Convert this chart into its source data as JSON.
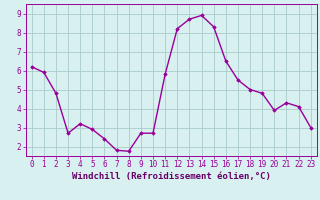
{
  "x": [
    0,
    1,
    2,
    3,
    4,
    5,
    6,
    7,
    8,
    9,
    10,
    11,
    12,
    13,
    14,
    15,
    16,
    17,
    18,
    19,
    20,
    21,
    22,
    23
  ],
  "y": [
    6.2,
    5.9,
    4.8,
    2.7,
    3.2,
    2.9,
    2.4,
    1.8,
    1.75,
    2.7,
    2.7,
    5.8,
    8.2,
    8.7,
    8.9,
    8.3,
    6.5,
    5.5,
    5.0,
    4.8,
    3.9,
    4.3,
    4.1,
    3.0
  ],
  "line_color": "#990099",
  "marker": "D",
  "marker_size": 1.8,
  "bg_color": "#d8f0f0",
  "grid_color": "#aacccc",
  "xlabel": "Windchill (Refroidissement éolien,°C)",
  "xlabel_color": "#660066",
  "ylim": [
    1.5,
    9.5
  ],
  "xlim": [
    -0.5,
    23.5
  ],
  "yticks": [
    2,
    3,
    4,
    5,
    6,
    7,
    8,
    9
  ],
  "xticks": [
    0,
    1,
    2,
    3,
    4,
    5,
    6,
    7,
    8,
    9,
    10,
    11,
    12,
    13,
    14,
    15,
    16,
    17,
    18,
    19,
    20,
    21,
    22,
    23
  ],
  "tick_color": "#990099",
  "tick_label_fontsize": 5.5,
  "xlabel_fontsize": 6.5,
  "linewidth": 1.0,
  "spine_color": "#990099"
}
